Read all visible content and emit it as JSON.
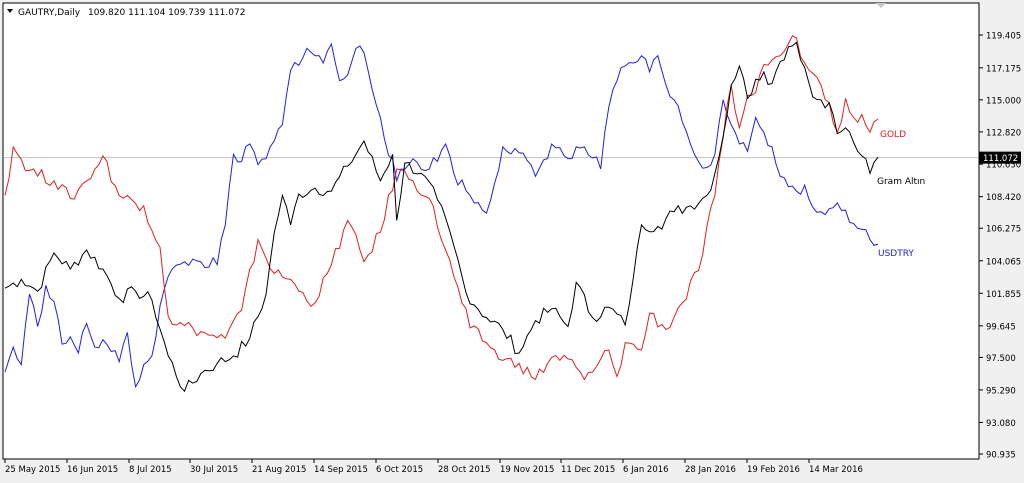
{
  "header": {
    "symbol": "GAUTRY,Daily",
    "ohlc": "109.820 111.104 109.739 111.072"
  },
  "chart_data": {
    "type": "line",
    "ylim": [
      90.935,
      121.52
    ],
    "y_ticks": [
      "119.405",
      "117.175",
      "115.000",
      "112.820",
      "110.630",
      "108.420",
      "106.275",
      "104.065",
      "101.855",
      "99.645",
      "97.500",
      "95.290",
      "93.080",
      "90.935"
    ],
    "x_ticks": [
      "25 May 2015",
      "16 Jun 2015",
      "8 Jul 2015",
      "30 Jul 2015",
      "21 Aug 2015",
      "14 Sep 2015",
      "6 Oct 2015",
      "28 Oct 2015",
      "19 Nov 2015",
      "11 Dec 2015",
      "6 Jan 2016",
      "28 Jan 2016",
      "19 Feb 2016",
      "14 Mar 2016"
    ],
    "current_price": "111.072",
    "x_units": "trading days",
    "series": [
      {
        "name": "Gram Altın",
        "color": "#000000",
        "label": "Gram Altın",
        "points": [
          [
            0,
            102.2
          ],
          [
            4,
            102.8
          ],
          [
            8,
            102.0
          ],
          [
            12,
            104.6
          ],
          [
            16,
            103.5
          ],
          [
            20,
            104.8
          ],
          [
            24,
            103.5
          ],
          [
            28,
            101.5
          ],
          [
            32,
            102.0
          ],
          [
            36,
            101.4
          ],
          [
            40,
            97.6
          ],
          [
            44,
            95.2
          ],
          [
            48,
            96.4
          ],
          [
            52,
            97.1
          ],
          [
            56,
            97.6
          ],
          [
            60,
            98.8
          ],
          [
            64,
            101.8
          ],
          [
            66,
            106.0
          ],
          [
            68,
            108.5
          ],
          [
            70,
            106.5
          ],
          [
            72,
            108.6
          ],
          [
            76,
            109.0
          ],
          [
            80,
            108.8
          ],
          [
            84,
            110.5
          ],
          [
            88,
            112.2
          ],
          [
            92,
            109.5
          ],
          [
            95,
            111.3
          ],
          [
            96,
            106.8
          ],
          [
            98,
            110.7
          ],
          [
            102,
            110.0
          ],
          [
            106,
            108.2
          ],
          [
            110,
            105.1
          ],
          [
            113,
            101.9
          ],
          [
            118,
            100.2
          ],
          [
            122,
            99.4
          ],
          [
            126,
            97.8
          ],
          [
            130,
            100.0
          ],
          [
            134,
            100.8
          ],
          [
            138,
            99.6
          ],
          [
            140,
            102.6
          ],
          [
            144,
            100.2
          ],
          [
            148,
            100.9
          ],
          [
            152,
            99.7
          ],
          [
            154,
            102.9
          ],
          [
            156,
            106.5
          ],
          [
            160,
            106.4
          ],
          [
            164,
            107.4
          ],
          [
            168,
            107.8
          ],
          [
            172,
            108.5
          ],
          [
            174,
            110.0
          ],
          [
            176,
            112.5
          ],
          [
            178,
            116.0
          ],
          [
            180,
            117.3
          ],
          [
            182,
            115.1
          ],
          [
            184,
            116.4
          ],
          [
            186,
            116.9
          ],
          [
            188,
            116.1
          ],
          [
            190,
            117.6
          ],
          [
            192,
            118.6
          ],
          [
            194,
            118.9
          ],
          [
            196,
            117.2
          ],
          [
            198,
            115.2
          ],
          [
            200,
            115.0
          ],
          [
            202,
            114.8
          ],
          [
            204,
            112.7
          ],
          [
            206,
            113.1
          ],
          [
            208,
            112.1
          ],
          [
            210,
            111.2
          ],
          [
            212,
            110.0
          ],
          [
            214,
            111.1
          ]
        ]
      },
      {
        "name": "GOLD",
        "color": "#e02020",
        "label": "GOLD",
        "points": [
          [
            0,
            108.5
          ],
          [
            2,
            111.8
          ],
          [
            6,
            110.2
          ],
          [
            12,
            109.5
          ],
          [
            16,
            108.3
          ],
          [
            20,
            109.5
          ],
          [
            24,
            111.2
          ],
          [
            28,
            108.5
          ],
          [
            34,
            107.8
          ],
          [
            38,
            105.0
          ],
          [
            40,
            100.3
          ],
          [
            42,
            99.7
          ],
          [
            46,
            99.5
          ],
          [
            50,
            99.0
          ],
          [
            54,
            98.8
          ],
          [
            58,
            100.7
          ],
          [
            62,
            105.5
          ],
          [
            66,
            103.2
          ],
          [
            70,
            102.8
          ],
          [
            72,
            102.0
          ],
          [
            76,
            101.2
          ],
          [
            80,
            103.8
          ],
          [
            84,
            106.8
          ],
          [
            88,
            104.0
          ],
          [
            92,
            106.0
          ],
          [
            96,
            110.3
          ],
          [
            100,
            109.5
          ],
          [
            104,
            108.3
          ],
          [
            110,
            103.0
          ],
          [
            114,
            99.5
          ],
          [
            118,
            98.5
          ],
          [
            122,
            97.3
          ],
          [
            126,
            97.1
          ],
          [
            130,
            96.0
          ],
          [
            134,
            97.5
          ],
          [
            138,
            97.4
          ],
          [
            142,
            96.0
          ],
          [
            144,
            96.5
          ],
          [
            148,
            98.0
          ],
          [
            150,
            96.2
          ],
          [
            152,
            98.5
          ],
          [
            156,
            98.0
          ],
          [
            158,
            100.5
          ],
          [
            162,
            99.4
          ],
          [
            166,
            101.2
          ],
          [
            170,
            103.4
          ],
          [
            174,
            108.5
          ],
          [
            176,
            112.4
          ],
          [
            178,
            116.0
          ],
          [
            180,
            113.1
          ],
          [
            182,
            115.3
          ],
          [
            184,
            115.5
          ],
          [
            186,
            117.4
          ],
          [
            188,
            117.7
          ],
          [
            190,
            118.0
          ],
          [
            192,
            118.8
          ],
          [
            194,
            119.2
          ],
          [
            196,
            117.5
          ],
          [
            198,
            116.8
          ],
          [
            200,
            116.0
          ],
          [
            202,
            114.8
          ],
          [
            204,
            112.8
          ],
          [
            206,
            115.1
          ],
          [
            208,
            113.8
          ],
          [
            210,
            114.0
          ],
          [
            212,
            112.8
          ],
          [
            214,
            113.7
          ]
        ]
      },
      {
        "name": "USDTRY",
        "color": "#2020e0",
        "label": "USDTRY",
        "points": [
          [
            0,
            96.5
          ],
          [
            2,
            98.2
          ],
          [
            4,
            97.0
          ],
          [
            6,
            101.8
          ],
          [
            8,
            99.6
          ],
          [
            10,
            102.4
          ],
          [
            12,
            101.3
          ],
          [
            14,
            98.4
          ],
          [
            16,
            98.9
          ],
          [
            18,
            97.8
          ],
          [
            20,
            99.8
          ],
          [
            22,
            98.2
          ],
          [
            24,
            98.7
          ],
          [
            26,
            97.9
          ],
          [
            28,
            97.2
          ],
          [
            30,
            99.2
          ],
          [
            32,
            95.5
          ],
          [
            34,
            97.0
          ],
          [
            36,
            97.6
          ],
          [
            38,
            101.0
          ],
          [
            40,
            103.0
          ],
          [
            44,
            104.0
          ],
          [
            48,
            104.0
          ],
          [
            52,
            103.8
          ],
          [
            54,
            106.5
          ],
          [
            56,
            111.3
          ],
          [
            58,
            110.8
          ],
          [
            60,
            112.0
          ],
          [
            62,
            110.6
          ],
          [
            64,
            111.0
          ],
          [
            68,
            113.3
          ],
          [
            70,
            117.0
          ],
          [
            74,
            118.5
          ],
          [
            76,
            118.0
          ],
          [
            78,
            117.5
          ],
          [
            80,
            118.8
          ],
          [
            82,
            116.3
          ],
          [
            84,
            116.7
          ],
          [
            86,
            118.5
          ],
          [
            88,
            118.2
          ],
          [
            92,
            113.8
          ],
          [
            96,
            109.5
          ],
          [
            100,
            111.0
          ],
          [
            104,
            110.3
          ],
          [
            108,
            112.0
          ],
          [
            110,
            110.0
          ],
          [
            114,
            108.5
          ],
          [
            118,
            107.3
          ],
          [
            122,
            111.8
          ],
          [
            126,
            111.4
          ],
          [
            130,
            109.8
          ],
          [
            134,
            112.0
          ],
          [
            138,
            111.0
          ],
          [
            142,
            111.8
          ],
          [
            146,
            110.3
          ],
          [
            148,
            114.5
          ],
          [
            150,
            116.3
          ],
          [
            152,
            117.3
          ],
          [
            154,
            117.5
          ],
          [
            156,
            118.0
          ],
          [
            158,
            116.9
          ],
          [
            160,
            118.0
          ],
          [
            162,
            116.0
          ],
          [
            164,
            115.0
          ],
          [
            166,
            113.5
          ],
          [
            168,
            112.0
          ],
          [
            170,
            110.8
          ],
          [
            172,
            110.4
          ],
          [
            174,
            111.3
          ],
          [
            176,
            115.0
          ],
          [
            178,
            113.3
          ],
          [
            180,
            112.0
          ],
          [
            182,
            111.5
          ],
          [
            184,
            113.8
          ],
          [
            186,
            112.8
          ],
          [
            188,
            111.8
          ],
          [
            190,
            109.8
          ],
          [
            192,
            109.1
          ],
          [
            194,
            108.8
          ],
          [
            196,
            109.2
          ],
          [
            198,
            107.7
          ],
          [
            200,
            107.4
          ],
          [
            202,
            107.6
          ],
          [
            204,
            108.0
          ],
          [
            206,
            107.5
          ],
          [
            208,
            106.6
          ],
          [
            210,
            106.2
          ],
          [
            212,
            105.5
          ],
          [
            214,
            105.2
          ]
        ]
      }
    ]
  }
}
